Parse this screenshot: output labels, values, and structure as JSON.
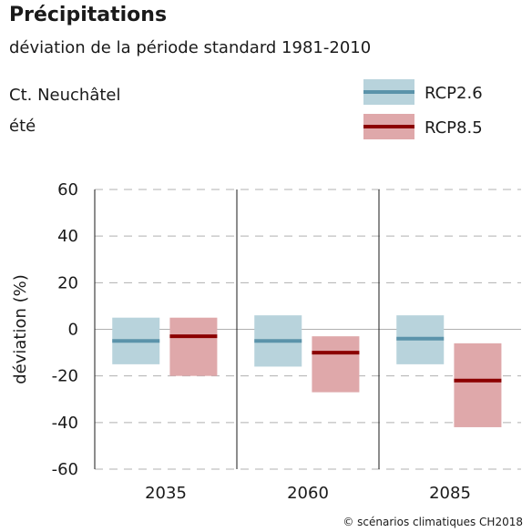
{
  "header": {
    "title": "Précipitations",
    "subtitle": "déviation de la période standard 1981-2010",
    "region": "Ct. Neuchâtel",
    "season": "été"
  },
  "credit": "© scénarios climatiques CH2018",
  "colors": {
    "rcp26_band": "#b8d3dc",
    "rcp26_line": "#5b93aa",
    "rcp85_band": "#dfa8aa",
    "rcp85_line": "#8b0000",
    "grid": "#b0b0b0",
    "zero_line": "#b0b0b0",
    "axis": "#1a1a1a"
  },
  "chart_data": {
    "type": "bar",
    "categories": [
      "2035",
      "2060",
      "2085"
    ],
    "ylabel": "déviation (%)",
    "ylim": [
      -60,
      60
    ],
    "yticks": [
      -60,
      -40,
      -20,
      0,
      20,
      40,
      60
    ],
    "grid": true,
    "legend_position": "top-right",
    "series": [
      {
        "name": "RCP2.6",
        "low": [
          -15,
          -16,
          -15
        ],
        "median": [
          -5,
          -5,
          -4
        ],
        "high": [
          5,
          6,
          6
        ]
      },
      {
        "name": "RCP8.5",
        "low": [
          -20,
          -27,
          -42
        ],
        "median": [
          -3,
          -10,
          -22
        ],
        "high": [
          5,
          -3,
          -6
        ]
      }
    ]
  }
}
